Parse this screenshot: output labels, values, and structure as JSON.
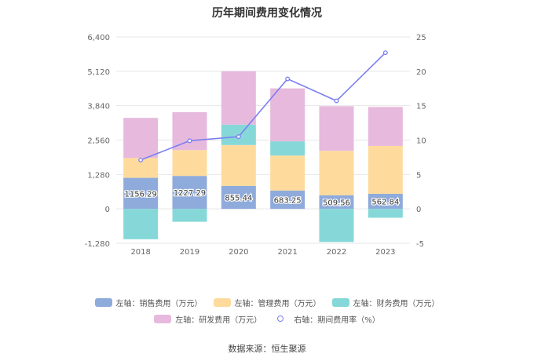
{
  "chart_data": {
    "type": "bar",
    "title": "历年期间费用变化情况",
    "categories": [
      "2018",
      "2019",
      "2020",
      "2021",
      "2022",
      "2023"
    ],
    "stacked": true,
    "left_axis": {
      "min": -1280,
      "max": 6400,
      "ticks": [
        "-1,280",
        "0",
        "1,280",
        "2,560",
        "3,840",
        "5,120",
        "6,400"
      ]
    },
    "right_axis": {
      "min": -5,
      "max": 25,
      "ticks": [
        "-5",
        "0",
        "5",
        "10",
        "15",
        "20",
        "25"
      ]
    },
    "grid": true,
    "legend_position": "bottom",
    "series": [
      {
        "name": "左轴：销售费用（万元）",
        "axis": "left",
        "kind": "bar",
        "color": "#8fabdb",
        "values": [
          1156.29,
          1227.29,
          855.44,
          683.25,
          509.56,
          562.84
        ],
        "labels": [
          "1156.29",
          "1227.29",
          "855.44",
          "683.25",
          "509.56",
          "562.84"
        ]
      },
      {
        "name": "左轴：管理费用（万元）",
        "axis": "left",
        "kind": "bar",
        "color": "#fedb9c",
        "values": [
          740,
          960,
          1520,
          1300,
          1650,
          1780
        ]
      },
      {
        "name": "左轴：财务费用（万元）",
        "axis": "left",
        "kind": "bar",
        "color": "#86d8d8",
        "values": [
          -1130,
          -480,
          760,
          530,
          -1230,
          -330
        ]
      },
      {
        "name": "左轴：研发费用（万元）",
        "axis": "left",
        "kind": "bar",
        "color": "#e6b9dd",
        "values": [
          1490,
          1410,
          1990,
          1970,
          1660,
          1450
        ]
      },
      {
        "name": "右轴：期间费用率（%）",
        "axis": "right",
        "kind": "line",
        "color": "#7b7ff0",
        "values": [
          7.1,
          9.9,
          10.5,
          18.9,
          15.7,
          22.7
        ]
      }
    ]
  },
  "legend": {
    "row1": [
      "左轴：销售费用（万元）",
      "左轴：管理费用（万元）",
      "左轴：财务费用（万元）"
    ],
    "row2": [
      "左轴：研发费用（万元）",
      "右轴：期间费用率（%）"
    ]
  },
  "source": "数据来源：恒生聚源"
}
